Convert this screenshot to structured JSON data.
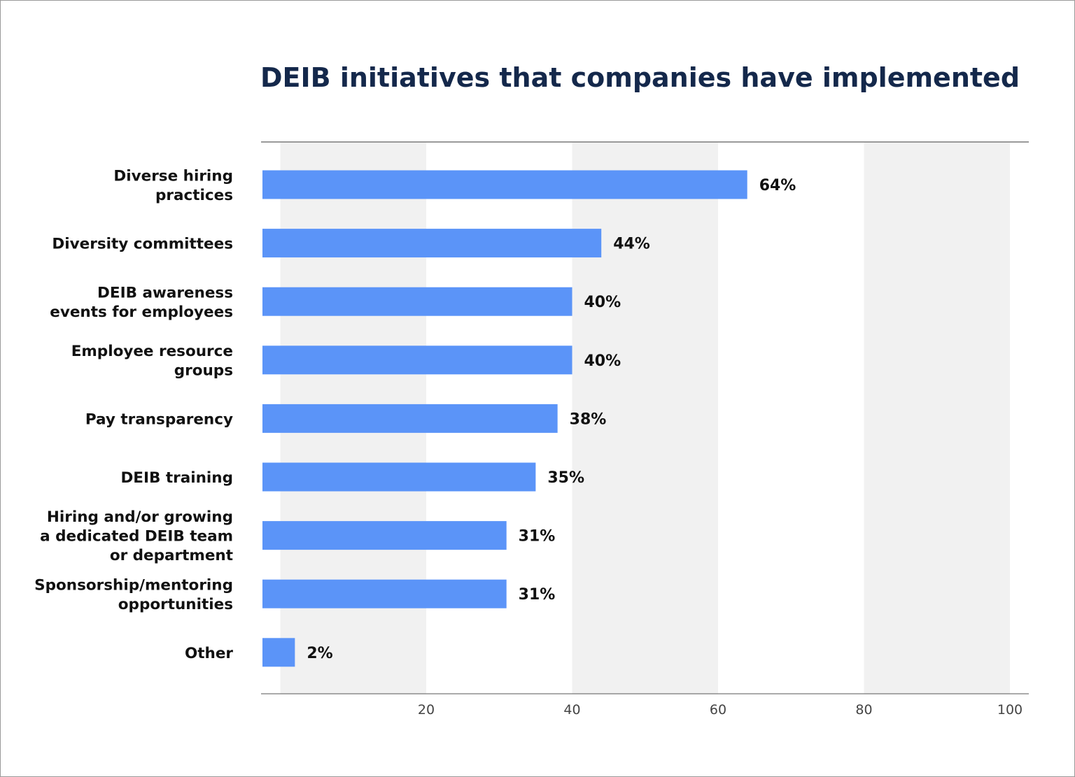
{
  "chart_data": {
    "type": "bar",
    "orientation": "horizontal",
    "title": "DEIB initiatives that companies have implemented",
    "categories": [
      [
        "Diverse hiring",
        "practices"
      ],
      [
        "Diversity committees"
      ],
      [
        "DEIB awareness",
        "events for employees"
      ],
      [
        "Employee resource",
        "groups"
      ],
      [
        "Pay transparency"
      ],
      [
        "DEIB training"
      ],
      [
        "Hiring and/or growing",
        "a dedicated DEIB team",
        "or department"
      ],
      [
        "Sponsorship/mentoring",
        "opportunities"
      ],
      [
        "Other"
      ]
    ],
    "values": [
      64,
      44,
      40,
      40,
      38,
      35,
      31,
      31,
      2
    ],
    "data_labels": [
      "64%",
      "44%",
      "40%",
      "40%",
      "38%",
      "35%",
      "31%",
      "31%",
      "2%"
    ],
    "xlim": [
      0,
      100
    ],
    "xticks": [
      20,
      40,
      60,
      80,
      100
    ],
    "grid": "alternating vertical bands",
    "legend": "none",
    "colors": {
      "bar": "#5b94f8",
      "band": "#f1f1f1",
      "title": "#14284b",
      "axis": "#8a8a8a"
    }
  }
}
